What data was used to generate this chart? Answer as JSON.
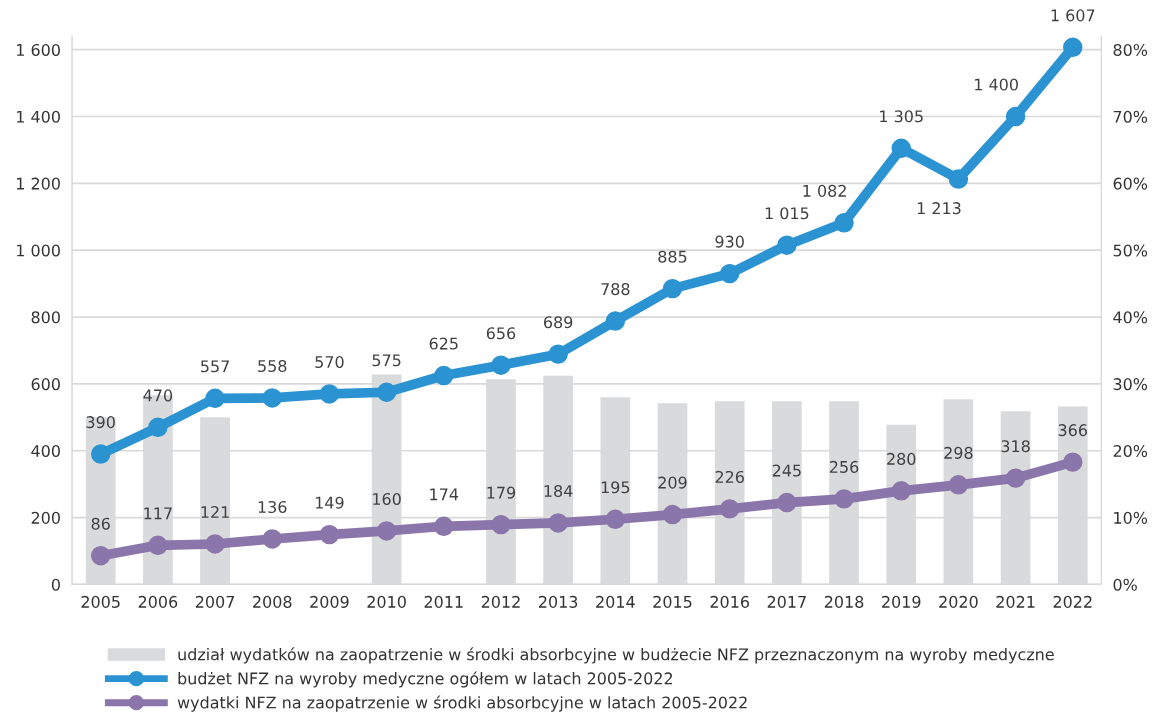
{
  "chart_data": {
    "type": "line",
    "categories": [
      "2005",
      "2006",
      "2007",
      "2008",
      "2009",
      "2010",
      "2011",
      "2012",
      "2013",
      "2014",
      "2015",
      "2016",
      "2017",
      "2018",
      "2019",
      "2020",
      "2021",
      "2022"
    ],
    "series": [
      {
        "name": "udział wydatków na zaopatrzenie w środki absorbcyjne w budżecie NFZ przeznaczonym na wyroby medyczne",
        "type": "bar",
        "axis": "y2",
        "color": "#d9dadc",
        "values": [
          25,
          28.3,
          25,
          null,
          null,
          31.4,
          null,
          30.7,
          31.2,
          28,
          27.1,
          27.4,
          27.4,
          27.4,
          23.9,
          27.7,
          25.9,
          26.6
        ]
      },
      {
        "name": "budżet NFZ na wyroby medyczne ogółem w latach 2005-2022",
        "color": "#2b93d1",
        "values": [
          390,
          470,
          557,
          558,
          570,
          575,
          625,
          656,
          689,
          788,
          885,
          930,
          1015,
          1082,
          1305,
          1213,
          1400,
          1607
        ],
        "value_labels": [
          "390",
          "470",
          "557",
          "558",
          "570",
          "575",
          "625",
          "656",
          "689",
          "788",
          "885",
          "930",
          "1 015",
          "1 082",
          "1 305",
          "1 213",
          "1 400",
          "1 607"
        ]
      },
      {
        "name": "wydatki NFZ na zaopatrzenie w środki absorbcyjne w latach 2005-2022",
        "color": "#8b76ab",
        "values": [
          86,
          117,
          121,
          136,
          149,
          160,
          174,
          179,
          184,
          195,
          209,
          226,
          245,
          256,
          280,
          298,
          318,
          366
        ],
        "value_labels": [
          "86",
          "117",
          "121",
          "136",
          "149",
          "160",
          "174",
          "179",
          "184",
          "195",
          "209",
          "226",
          "245",
          "256",
          "280",
          "298",
          "318",
          "366"
        ]
      }
    ],
    "ylim": [
      0,
      1640
    ],
    "yticks": [
      0,
      {
        "value": 200,
        "label": "200"
      },
      {
        "value": 400,
        "label": "400"
      },
      {
        "value": 600,
        "label": "600"
      },
      {
        "value": 800,
        "label": "800"
      },
      {
        "value": 1000,
        "label": "1 000"
      },
      {
        "value": 1200,
        "label": "1 200"
      },
      {
        "value": 1400,
        "label": "1 400"
      },
      {
        "value": 1600,
        "label": "1 600"
      }
    ],
    "y2lim": [
      0,
      82
    ],
    "y2ticks": [
      {
        "value": 0,
        "label": "0%"
      },
      {
        "value": 10,
        "label": "10%"
      },
      {
        "value": 20,
        "label": "20%"
      },
      {
        "value": 30,
        "label": "30%"
      },
      {
        "value": 40,
        "label": "40%"
      },
      {
        "value": 50,
        "label": "50%"
      },
      {
        "value": 60,
        "label": "60%"
      },
      {
        "value": 70,
        "label": "70%"
      },
      {
        "value": 80,
        "label": "80%"
      }
    ],
    "grid": "y",
    "legend": "bottom",
    "marker": "circle"
  }
}
